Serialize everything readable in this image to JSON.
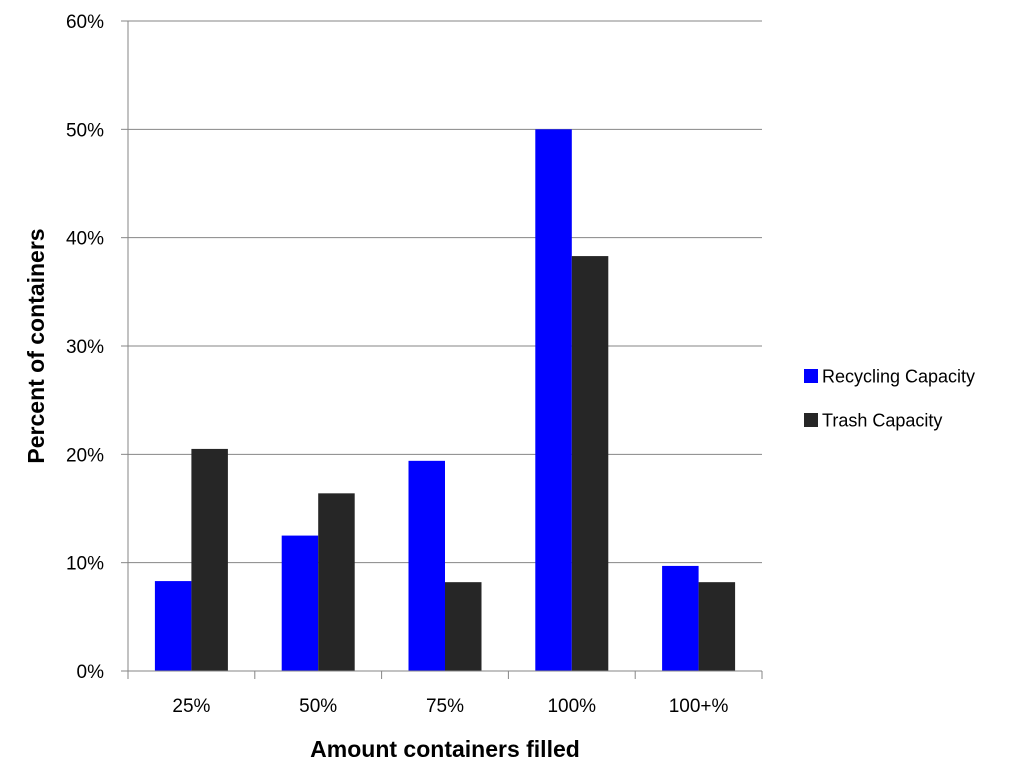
{
  "chart_data": {
    "type": "bar",
    "title": "",
    "xlabel": "Amount containers filled",
    "ylabel": "Percent of containers",
    "categories": [
      "25%",
      "50%",
      "75%",
      "100%",
      "100+%"
    ],
    "series": [
      {
        "name": "Recycling Capacity",
        "color": "#0000ff",
        "values": [
          8.3,
          12.5,
          19.4,
          50.0,
          9.7
        ]
      },
      {
        "name": "Trash Capacity",
        "color": "#262626",
        "values": [
          20.5,
          16.4,
          8.2,
          38.3,
          8.2
        ]
      }
    ],
    "ylim": [
      0,
      60
    ],
    "yticks": [
      0,
      10,
      20,
      30,
      40,
      50,
      60
    ],
    "ytick_labels": [
      "0%",
      "10%",
      "20%",
      "30%",
      "40%",
      "50%",
      "60%"
    ],
    "grid": true,
    "legend_position": "right"
  }
}
